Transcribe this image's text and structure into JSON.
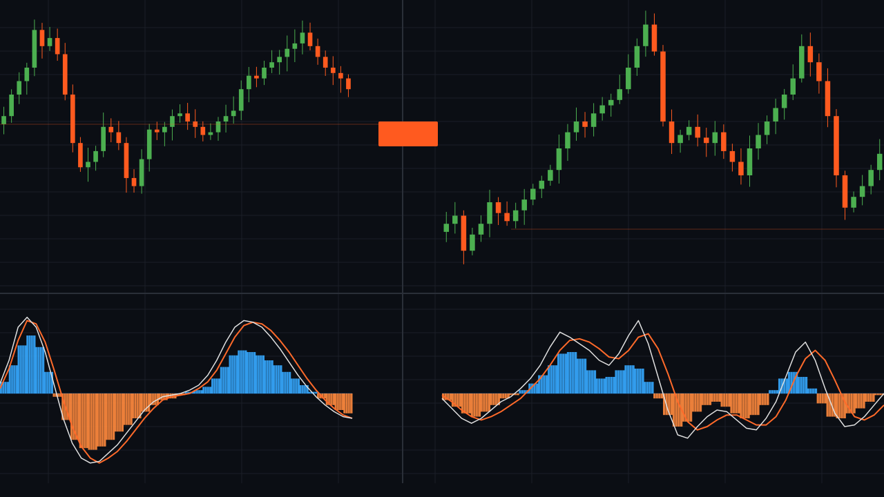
{
  "colors": {
    "background": "#0b0e14",
    "grid": "#1b1f27",
    "separator": "#2a2f38",
    "up": "#4caf50",
    "down": "#ff5a1f",
    "macd_line": "#e0e0e0",
    "signal_line": "#ff6a2a",
    "hist_pos": "#35a8ff",
    "hist_neg": "#ff8a3d",
    "price_marker": "#ff5a1f"
  },
  "header": {
    "title": "",
    "macd_label": ""
  },
  "price_axis_labels": [
    "",
    "",
    "",
    "",
    "",
    "",
    "",
    "",
    "",
    "",
    "",
    "",
    ""
  ],
  "price_marker_label": "",
  "macd_axis_labels": [
    "",
    "",
    "",
    "",
    "",
    "",
    ""
  ],
  "time_axis_labels": [
    "",
    "",
    "",
    "",
    "",
    "",
    "",
    "",
    ""
  ],
  "chart_data": [
    {
      "type": "candlestick",
      "panel": "left-price",
      "ylim": [
        0,
        100
      ],
      "grid": true,
      "closes": [
        62,
        70,
        75,
        80,
        94,
        88,
        91,
        85,
        70,
        52,
        43,
        45,
        49,
        58,
        56,
        52,
        39,
        36,
        46,
        57,
        56,
        58,
        62,
        63,
        60,
        58,
        55,
        56,
        60,
        62,
        64,
        72,
        77,
        76,
        80,
        82,
        84,
        87,
        89,
        93,
        88,
        84,
        80,
        78,
        76,
        72
      ]
    },
    {
      "type": "candlestick",
      "panel": "right-price",
      "ylim": [
        0,
        100
      ],
      "grid": true,
      "closes": [
        22,
        25,
        12,
        18,
        22,
        30,
        26,
        23,
        27,
        31,
        35,
        38,
        42,
        50,
        56,
        60,
        58,
        63,
        66,
        68,
        72,
        80,
        88,
        96,
        86,
        60,
        52,
        55,
        58,
        54,
        52,
        56,
        49,
        45,
        40,
        50,
        55,
        60,
        65,
        70,
        76,
        88,
        82,
        75,
        62,
        40,
        28,
        32,
        36,
        42,
        48
      ]
    },
    {
      "type": "macd",
      "panel": "left-indicator",
      "ylim": [
        -100,
        100
      ],
      "histogram": [
        14,
        34,
        58,
        70,
        56,
        26,
        -4,
        -32,
        -56,
        -66,
        -68,
        -64,
        -56,
        -46,
        -38,
        -30,
        -22,
        -14,
        -8,
        -6,
        -2,
        2,
        4,
        8,
        18,
        32,
        46,
        52,
        50,
        46,
        40,
        34,
        26,
        18,
        10,
        2,
        -6,
        -14,
        -20,
        -24
      ],
      "macd_line": [
        12,
        40,
        80,
        92,
        80,
        50,
        10,
        -30,
        -60,
        -78,
        -84,
        -82,
        -72,
        -62,
        -48,
        -34,
        -20,
        -10,
        -4,
        -2,
        0,
        4,
        10,
        22,
        40,
        62,
        80,
        88,
        86,
        80,
        68,
        54,
        38,
        22,
        8,
        -4,
        -14,
        -22,
        -28,
        -30
      ],
      "signal_line": [
        6,
        30,
        64,
        88,
        84,
        62,
        28,
        -8,
        -40,
        -64,
        -78,
        -84,
        -78,
        -70,
        -58,
        -44,
        -30,
        -18,
        -8,
        -4,
        -2,
        0,
        6,
        14,
        28,
        48,
        68,
        82,
        86,
        84,
        76,
        64,
        50,
        34,
        18,
        4,
        -8,
        -18,
        -26,
        -30
      ]
    },
    {
      "type": "macd",
      "panel": "right-indicator",
      "ylim": [
        -100,
        100
      ],
      "histogram": [
        -8,
        -16,
        -24,
        -28,
        -22,
        -14,
        -6,
        -2,
        4,
        12,
        22,
        34,
        48,
        50,
        42,
        28,
        18,
        20,
        28,
        34,
        30,
        14,
        -6,
        -26,
        -40,
        -34,
        -22,
        -14,
        -10,
        -16,
        -24,
        -30,
        -26,
        -14,
        4,
        18,
        26,
        20,
        6,
        -12,
        -28,
        -30,
        -24,
        -18,
        -10,
        -2
      ],
      "macd_line": [
        -6,
        -18,
        -30,
        -36,
        -30,
        -20,
        -10,
        -4,
        6,
        18,
        34,
        56,
        74,
        68,
        60,
        52,
        40,
        34,
        48,
        70,
        88,
        60,
        20,
        -20,
        -50,
        -54,
        -40,
        -28,
        -20,
        -22,
        -32,
        -42,
        -44,
        -30,
        -10,
        20,
        50,
        62,
        40,
        6,
        -24,
        -40,
        -38,
        -28,
        -14,
        0
      ],
      "signal_line": [
        -2,
        -10,
        -20,
        -28,
        -32,
        -28,
        -22,
        -14,
        -6,
        6,
        18,
        34,
        52,
        64,
        66,
        62,
        54,
        44,
        42,
        52,
        68,
        72,
        54,
        24,
        -10,
        -34,
        -44,
        -40,
        -32,
        -26,
        -26,
        -32,
        -38,
        -38,
        -28,
        -8,
        20,
        42,
        52,
        40,
        16,
        -10,
        -28,
        -32,
        -26,
        -14
      ]
    }
  ]
}
